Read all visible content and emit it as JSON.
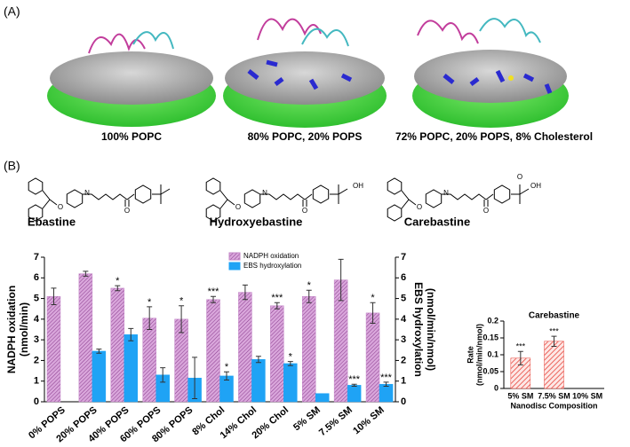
{
  "panel_a": {
    "label": "(A)",
    "captions": [
      "100% POPC",
      "80% POPC, 20% POPS",
      "72% POPC, 20% POPS, 8% Cholesterol"
    ]
  },
  "panel_b": {
    "label": "(B)",
    "molecules": [
      {
        "name": "Ebastine",
        "atoms": [
          "O",
          "N",
          "O"
        ]
      },
      {
        "name": "Hydroxyebastine",
        "atoms": [
          "O",
          "N",
          "O",
          "OH"
        ]
      },
      {
        "name": "Carebastine",
        "atoms": [
          "O",
          "N",
          "O",
          "O",
          "OH"
        ]
      }
    ]
  },
  "chart_data": [
    {
      "type": "bar",
      "ylabel": [
        "NADPH oxidation",
        "(nmol/min)"
      ],
      "y2label": [
        "EBS hydroxylation",
        "(nmol/min/nmol)"
      ],
      "categories": [
        "0% POPS",
        "20% POPS",
        "40% POPS",
        "60% POPS",
        "80% POPS",
        "8% Chol",
        "14% Chol",
        "20% Chol",
        "5% SM",
        "7.5% SM",
        "10% SM"
      ],
      "ylim": [
        0,
        7
      ],
      "yticks": [
        0,
        1,
        2,
        3,
        4,
        5,
        6,
        7
      ],
      "y2lim": [
        0,
        7
      ],
      "y2ticks": [
        0,
        1,
        2,
        3,
        4,
        5,
        6,
        7
      ],
      "series": [
        {
          "name": "NADPH oxidation",
          "color": "#c285c6",
          "values": [
            5.1,
            6.2,
            5.5,
            4.05,
            4.0,
            4.95,
            5.3,
            4.65,
            5.1,
            5.9,
            4.3
          ],
          "errors": [
            0.4,
            0.12,
            0.12,
            0.55,
            0.65,
            0.15,
            0.35,
            0.15,
            0.3,
            1.0,
            0.5
          ],
          "annotations": [
            null,
            null,
            "*",
            "*",
            "*",
            "***",
            null,
            "***",
            "*",
            null,
            "*"
          ]
        },
        {
          "name": "EBS hydroxylation",
          "color": "#1fa3f5",
          "axis": "y2",
          "values": [
            0,
            2.45,
            3.25,
            1.3,
            1.15,
            1.25,
            2.05,
            1.85,
            0.4,
            0.8,
            0.85
          ],
          "errors": [
            null,
            0.1,
            0.3,
            0.35,
            1.0,
            0.2,
            0.15,
            0.1,
            null,
            0.05,
            0.1
          ],
          "annotations": [
            null,
            null,
            null,
            null,
            null,
            "*",
            null,
            "*",
            null,
            "***",
            "***"
          ]
        }
      ]
    },
    {
      "type": "bar",
      "title": "Carebastine",
      "ylabel": [
        "Rate",
        "(nmol/min/nmol)"
      ],
      "xlabel": "Nanodisc Composition",
      "categories": [
        "5% SM",
        "7.5% SM",
        "10% SM"
      ],
      "ylim": [
        0,
        0.2
      ],
      "yticks": [
        0,
        0.05,
        0.1,
        0.15,
        0.2
      ],
      "series": [
        {
          "color": "#e8463c",
          "values": [
            0.09,
            0.14,
            0
          ],
          "errors": [
            0.02,
            0.015,
            null
          ],
          "annotations": [
            "***",
            "***",
            null
          ]
        }
      ]
    }
  ]
}
